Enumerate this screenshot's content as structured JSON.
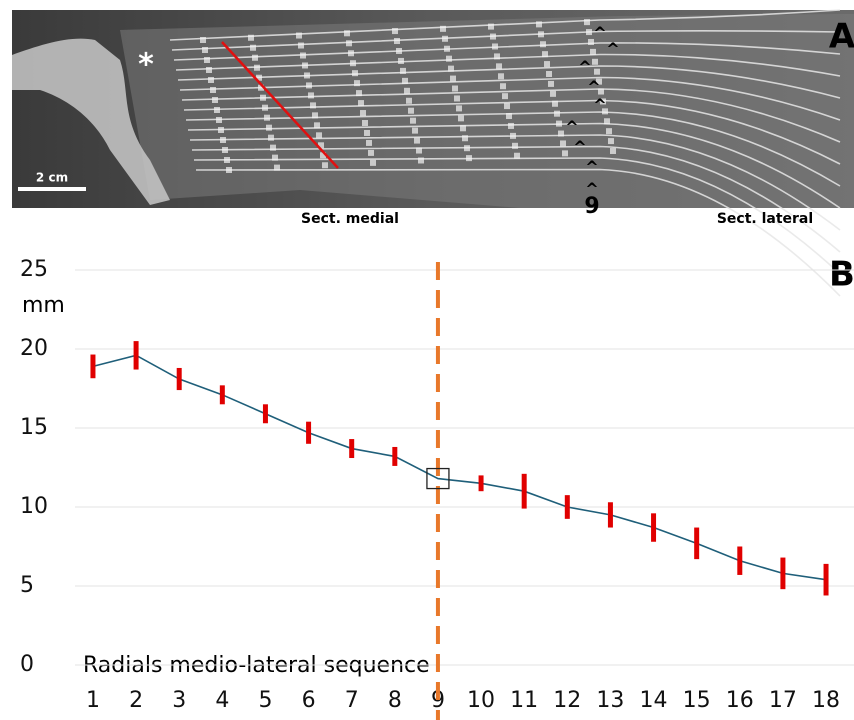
{
  "panel_a": {
    "letter": "A",
    "asterisk": "*",
    "scale_bar": "2 cm",
    "caret": "^",
    "radial_number": "9",
    "label_medial": "Sect. medial",
    "label_lateral": "Sect. lateral"
  },
  "chart_data": {
    "type": "line",
    "panel_letter": "B",
    "y_label": "mm",
    "x_label": "Radials medio-lateral sequence",
    "x": [
      1,
      2,
      3,
      4,
      5,
      6,
      7,
      8,
      9,
      10,
      11,
      12,
      13,
      14,
      15,
      16,
      17,
      18
    ],
    "values": [
      18.9,
      19.6,
      18.1,
      17.1,
      15.9,
      14.7,
      13.7,
      13.2,
      11.8,
      11.5,
      11.0,
      10.0,
      9.5,
      8.7,
      7.7,
      6.6,
      5.8,
      5.4
    ],
    "errors": [
      0.75,
      0.9,
      0.7,
      0.6,
      0.6,
      0.7,
      0.6,
      0.6,
      null,
      0.5,
      1.1,
      0.75,
      0.8,
      0.9,
      1.0,
      0.9,
      1.0,
      1.0
    ],
    "color": "#1f5f7a",
    "error_color": "#e00000",
    "xlim": [
      0.5,
      18.5
    ],
    "xticks": [
      1,
      2,
      3,
      4,
      5,
      6,
      7,
      8,
      9,
      10,
      11,
      12,
      13,
      14,
      15,
      16,
      17,
      18
    ],
    "ylim": [
      0,
      25
    ],
    "yticks": [
      0,
      5,
      10,
      15,
      20,
      25
    ],
    "grid": true,
    "vline": 9,
    "vline_color": "#e8782a",
    "highlight_x": 9
  }
}
